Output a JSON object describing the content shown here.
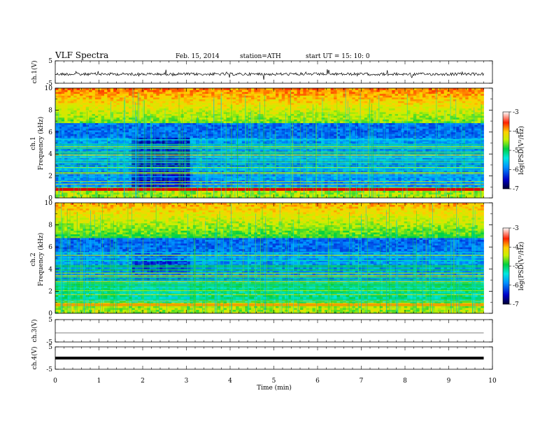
{
  "header": {
    "title": "VLF  Spectra",
    "date": "Feb. 15, 2014",
    "station": "station=ATH",
    "start": "start  UT  =   15: 10: 0"
  },
  "chart_data": {
    "type": "heatmap",
    "xlabel": "Time  (min)",
    "xlim": [
      0,
      10
    ],
    "x_ticks": [
      "0",
      "1",
      "2",
      "3",
      "4",
      "5",
      "6",
      "7",
      "8",
      "9",
      "10"
    ],
    "panels": [
      {
        "id": "ch1v",
        "ylabel": "ch.1(V)",
        "ylim": [
          -5,
          5
        ],
        "y_ticks": [
          "5",
          "-5"
        ],
        "kind": "waveform"
      },
      {
        "id": "ch1s",
        "ylabel_top": "ch.1",
        "ylabel": "Frequency  (kHz)",
        "ylim": [
          0,
          10
        ],
        "y_ticks": [
          "0",
          "2",
          "4",
          "6",
          "8",
          "10"
        ],
        "kind": "spectrogram"
      },
      {
        "id": "ch2s",
        "ylabel_top": "ch.2",
        "ylabel": "Frequency  (kHz)",
        "ylim": [
          0,
          10
        ],
        "y_ticks": [
          "0",
          "2",
          "4",
          "6",
          "8",
          "10"
        ],
        "kind": "spectrogram"
      },
      {
        "id": "ch3v",
        "ylabel": "ch.3(V)",
        "ylim": [
          -5,
          5
        ],
        "y_ticks": [
          "5",
          "-5"
        ],
        "kind": "waveform"
      },
      {
        "id": "ch4v",
        "ylabel": "ch.4(V)",
        "ylim": [
          -5,
          5
        ],
        "y_ticks": [
          "5",
          "-5"
        ],
        "kind": "waveform"
      }
    ],
    "colorbar": {
      "label": "log(PSD(V²/Hz)",
      "range": [
        -7,
        -3
      ],
      "ticks": [
        "-3",
        "-4",
        "-5",
        "-6",
        "-7"
      ]
    },
    "data_end_minute": 9.8
  }
}
